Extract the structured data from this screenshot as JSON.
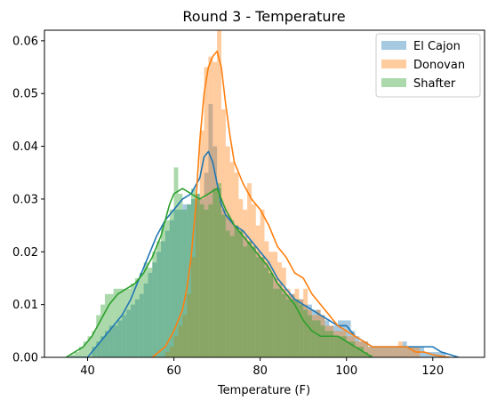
{
  "chart_data": {
    "type": "histogram_kde",
    "title": "Round 3 - Temperature",
    "xlabel": "Temperature (F)",
    "ylabel": "",
    "xlim": [
      30,
      132
    ],
    "ylim": [
      0,
      0.062
    ],
    "xticks": [
      40,
      60,
      80,
      100,
      120
    ],
    "xtick_labels": [
      "40",
      "60",
      "80",
      "100",
      "120"
    ],
    "yticks": [
      0.0,
      0.01,
      0.02,
      0.03,
      0.04,
      0.05,
      0.06
    ],
    "ytick_labels": [
      "0.00",
      "0.01",
      "0.02",
      "0.03",
      "0.04",
      "0.05",
      "0.06"
    ],
    "grid": false,
    "legend_position": "top-right",
    "bin_width": 1,
    "series": [
      {
        "name": "El Cajon",
        "color": "#1f77b4",
        "hist_bins_start": [
          41,
          42,
          43,
          44,
          45,
          46,
          47,
          48,
          49,
          50,
          51,
          52,
          53,
          54,
          55,
          56,
          57,
          58,
          59,
          60,
          61,
          62,
          63,
          64,
          65,
          66,
          67,
          68,
          69,
          70,
          71,
          72,
          73,
          74,
          75,
          76,
          77,
          78,
          79,
          80,
          81,
          82,
          83,
          84,
          85,
          86,
          87,
          88,
          89,
          90,
          91,
          92,
          93,
          94,
          95,
          96,
          97,
          98,
          99,
          100,
          101,
          102,
          103,
          104,
          105,
          106,
          107,
          108,
          109,
          110,
          111,
          112,
          113,
          114,
          115,
          116,
          117,
          118,
          119,
          120,
          121,
          122
        ],
        "hist_values": [
          0.002,
          0.003,
          0.004,
          0.005,
          0.006,
          0.006,
          0.007,
          0.008,
          0.009,
          0.01,
          0.011,
          0.012,
          0.014,
          0.016,
          0.018,
          0.02,
          0.022,
          0.024,
          0.026,
          0.028,
          0.028,
          0.029,
          0.029,
          0.03,
          0.031,
          0.03,
          0.035,
          0.048,
          0.04,
          0.032,
          0.028,
          0.027,
          0.026,
          0.025,
          0.024,
          0.023,
          0.022,
          0.021,
          0.02,
          0.019,
          0.018,
          0.016,
          0.015,
          0.014,
          0.013,
          0.012,
          0.012,
          0.011,
          0.011,
          0.01,
          0.01,
          0.009,
          0.009,
          0.008,
          0.007,
          0.006,
          0.006,
          0.007,
          0.007,
          0.007,
          0.005,
          0.004,
          0.003,
          0.003,
          0.002,
          0.002,
          0.002,
          0.002,
          0.002,
          0.002,
          0.002,
          0.002,
          0.003,
          0.002,
          0.002,
          0.002,
          0.002,
          0.001,
          0.001,
          0.001,
          0.001,
          0.001
        ],
        "kde_x": [
          35,
          40,
          42,
          44,
          46,
          48,
          50,
          52,
          54,
          56,
          58,
          60,
          62,
          64,
          66,
          67,
          68,
          69,
          70,
          71,
          72,
          74,
          76,
          78,
          80,
          82,
          84,
          86,
          88,
          90,
          92,
          94,
          96,
          98,
          100,
          102,
          104,
          106,
          108,
          110,
          112,
          114,
          116,
          118,
          120,
          122,
          124,
          126
        ],
        "kde_y": [
          0.0,
          0.0,
          0.002,
          0.004,
          0.006,
          0.008,
          0.011,
          0.015,
          0.019,
          0.023,
          0.026,
          0.028,
          0.03,
          0.031,
          0.034,
          0.038,
          0.039,
          0.037,
          0.033,
          0.029,
          0.027,
          0.025,
          0.024,
          0.022,
          0.02,
          0.018,
          0.015,
          0.013,
          0.011,
          0.01,
          0.009,
          0.008,
          0.007,
          0.006,
          0.006,
          0.004,
          0.003,
          0.002,
          0.002,
          0.002,
          0.002,
          0.002,
          0.002,
          0.002,
          0.002,
          0.001,
          0.0005,
          0.0
        ]
      },
      {
        "name": "Donovan",
        "color": "#ff7f0e",
        "hist_bins_start": [
          58,
          59,
          60,
          61,
          62,
          63,
          64,
          65,
          66,
          67,
          68,
          69,
          70,
          71,
          72,
          73,
          74,
          75,
          76,
          77,
          78,
          79,
          80,
          81,
          82,
          83,
          84,
          85,
          86,
          87,
          88,
          89,
          90,
          91,
          92,
          93,
          94,
          95,
          96,
          97,
          98,
          99,
          100,
          101,
          102,
          103,
          104,
          105,
          106,
          107,
          108,
          109,
          110,
          111,
          112,
          113,
          114,
          115,
          116
        ],
        "hist_values": [
          0.001,
          0.002,
          0.004,
          0.006,
          0.008,
          0.012,
          0.019,
          0.03,
          0.043,
          0.055,
          0.057,
          0.056,
          0.062,
          0.047,
          0.04,
          0.037,
          0.035,
          0.03,
          0.028,
          0.033,
          0.029,
          0.025,
          0.028,
          0.022,
          0.02,
          0.02,
          0.018,
          0.017,
          0.013,
          0.012,
          0.013,
          0.011,
          0.013,
          0.009,
          0.008,
          0.009,
          0.008,
          0.006,
          0.006,
          0.005,
          0.005,
          0.005,
          0.004,
          0.004,
          0.003,
          0.003,
          0.003,
          0.002,
          0.002,
          0.002,
          0.002,
          0.002,
          0.002,
          0.002,
          0.003,
          0.002,
          0.002,
          0.002,
          0.002
        ],
        "kde_x": [
          55,
          58,
          60,
          62,
          63,
          64,
          65,
          66,
          67,
          68,
          69,
          70,
          71,
          72,
          73,
          74,
          76,
          78,
          80,
          82,
          84,
          86,
          88,
          90,
          92,
          94,
          96,
          98,
          100,
          102,
          104,
          106,
          108,
          110,
          112,
          114,
          116,
          118,
          120,
          122,
          124
        ],
        "kde_y": [
          0.0,
          0.002,
          0.005,
          0.009,
          0.013,
          0.019,
          0.028,
          0.041,
          0.05,
          0.055,
          0.057,
          0.058,
          0.055,
          0.048,
          0.042,
          0.037,
          0.033,
          0.03,
          0.028,
          0.025,
          0.021,
          0.019,
          0.016,
          0.015,
          0.012,
          0.01,
          0.008,
          0.006,
          0.005,
          0.004,
          0.003,
          0.002,
          0.002,
          0.002,
          0.002,
          0.002,
          0.001,
          0.001,
          0.0005,
          0.0002,
          0.0
        ]
      },
      {
        "name": "Shafter",
        "color": "#2ca02c",
        "hist_bins_start": [
          36,
          37,
          38,
          39,
          40,
          41,
          42,
          43,
          44,
          45,
          46,
          47,
          48,
          49,
          50,
          51,
          52,
          53,
          54,
          55,
          56,
          57,
          58,
          59,
          60,
          61,
          62,
          63,
          64,
          65,
          66,
          67,
          68,
          69,
          70,
          71,
          72,
          73,
          74,
          75,
          76,
          77,
          78,
          79,
          80,
          81,
          82,
          83,
          84,
          85,
          86,
          87,
          88,
          89,
          90,
          91,
          92,
          93,
          94,
          95,
          96,
          97,
          98,
          99,
          100,
          101,
          102,
          103,
          104,
          105
        ],
        "hist_values": [
          0.0005,
          0.001,
          0.002,
          0.003,
          0.004,
          0.005,
          0.008,
          0.01,
          0.012,
          0.012,
          0.013,
          0.013,
          0.013,
          0.013,
          0.014,
          0.015,
          0.016,
          0.018,
          0.017,
          0.02,
          0.022,
          0.025,
          0.026,
          0.028,
          0.036,
          0.031,
          0.028,
          0.029,
          0.032,
          0.031,
          0.029,
          0.028,
          0.029,
          0.032,
          0.033,
          0.027,
          0.024,
          0.023,
          0.025,
          0.024,
          0.021,
          0.022,
          0.021,
          0.019,
          0.019,
          0.017,
          0.016,
          0.013,
          0.013,
          0.012,
          0.011,
          0.011,
          0.011,
          0.01,
          0.009,
          0.008,
          0.007,
          0.007,
          0.006,
          0.005,
          0.005,
          0.004,
          0.004,
          0.004,
          0.003,
          0.003,
          0.002,
          0.002,
          0.001,
          0.0005
        ],
        "kde_x": [
          35,
          37,
          39,
          41,
          43,
          45,
          47,
          49,
          51,
          53,
          55,
          57,
          59,
          60,
          62,
          64,
          66,
          68,
          70,
          72,
          74,
          76,
          78,
          80,
          82,
          84,
          86,
          88,
          90,
          92,
          94,
          96,
          98,
          100,
          102,
          104,
          106
        ],
        "kde_y": [
          0.0,
          0.001,
          0.002,
          0.004,
          0.007,
          0.01,
          0.012,
          0.013,
          0.014,
          0.016,
          0.019,
          0.023,
          0.029,
          0.031,
          0.032,
          0.031,
          0.03,
          0.031,
          0.032,
          0.028,
          0.025,
          0.023,
          0.021,
          0.019,
          0.017,
          0.014,
          0.012,
          0.01,
          0.007,
          0.005,
          0.004,
          0.004,
          0.004,
          0.003,
          0.002,
          0.001,
          0.0
        ]
      }
    ]
  }
}
